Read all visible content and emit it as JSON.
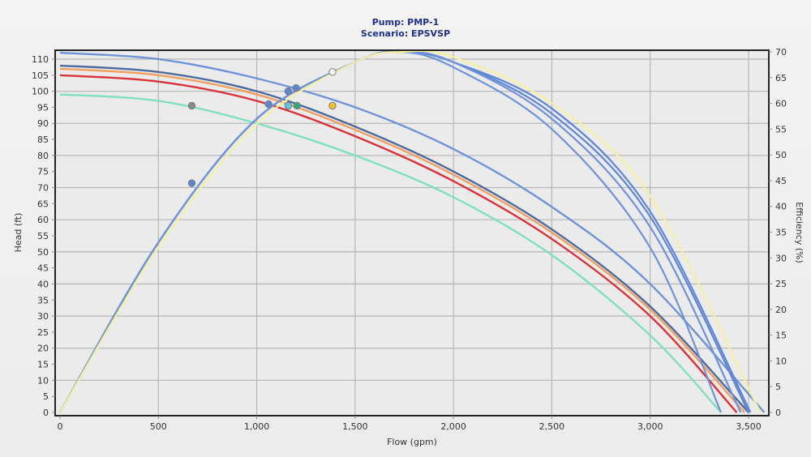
{
  "header": {
    "pump_label": "Pump: PMP-1",
    "scenario_label": "Scenario: EPSVSP"
  },
  "chart_data": {
    "type": "line",
    "title": "Pump: PMP-1",
    "subtitle": "Scenario: EPSVSP",
    "xlabel": "Flow (gpm)",
    "ylabel": "Head (ft)",
    "y2label": "Efficiency (%)",
    "xlim": [
      0,
      3600
    ],
    "ylim": [
      0,
      112
    ],
    "y2lim": [
      0,
      70
    ],
    "x_ticks": [
      0,
      500,
      1000,
      1500,
      2000,
      2500,
      3000,
      3500
    ],
    "x_tick_labels": [
      "0",
      "500",
      "1,000",
      "1,500",
      "2,000",
      "2,500",
      "3,000",
      "3,500"
    ],
    "y_ticks": [
      0,
      5,
      10,
      15,
      20,
      25,
      30,
      35,
      40,
      45,
      50,
      55,
      60,
      65,
      70,
      75,
      80,
      85,
      90,
      95,
      100,
      105,
      110
    ],
    "y2_ticks": [
      0,
      5,
      10,
      15,
      20,
      25,
      30,
      35,
      40,
      45,
      50,
      55,
      60,
      65,
      70
    ],
    "grid": true,
    "legend": "none",
    "head_curves": [
      {
        "name": "Head - light blue",
        "color": "#6f93d6",
        "shutoff": 112,
        "x": [
          0,
          500,
          1000,
          1500,
          2000,
          2500,
          3000,
          3580
        ],
        "values": [
          112,
          110,
          104,
          95,
          82,
          64,
          40,
          0
        ]
      },
      {
        "name": "Head - slate",
        "color": "#4e6a9c",
        "shutoff": 108,
        "x": [
          0,
          500,
          1000,
          1500,
          2000,
          2500,
          3000,
          3500
        ],
        "values": [
          108,
          106,
          100,
          89,
          75,
          57,
          33,
          0
        ]
      },
      {
        "name": "Head - orange",
        "color": "#f0a060",
        "shutoff": 107,
        "x": [
          0,
          500,
          1000,
          1500,
          2000,
          2500,
          3000,
          3480
        ],
        "values": [
          107,
          105,
          99,
          88,
          74,
          56,
          32,
          0
        ]
      },
      {
        "name": "Head - red",
        "color": "#d8323a",
        "shutoff": 105,
        "x": [
          0,
          500,
          1000,
          1500,
          2000,
          2500,
          3000,
          3440
        ],
        "values": [
          105,
          103,
          97,
          86,
          72,
          54,
          30,
          0
        ]
      },
      {
        "name": "Head - teal",
        "color": "#7fe0c0",
        "shutoff": 99,
        "x": [
          0,
          500,
          1000,
          1500,
          2000,
          2500,
          3000,
          3360
        ],
        "values": [
          99,
          97,
          90,
          80,
          67,
          49,
          24,
          0
        ]
      }
    ],
    "efficiency_curves": [
      {
        "name": "Efficiency - blue A",
        "color": "#5f86d2",
        "x": [
          0,
          500,
          1000,
          1500,
          1730,
          2000,
          2500,
          3000,
          3500
        ],
        "values": [
          0,
          33,
          57,
          68,
          70,
          68,
          58,
          38,
          0
        ]
      },
      {
        "name": "Efficiency - blue B",
        "color": "#5f86d2",
        "x": [
          0,
          500,
          1000,
          1500,
          1730,
          2000,
          2500,
          3000,
          3510
        ],
        "values": [
          0,
          33,
          57,
          68,
          70,
          68,
          59,
          39,
          0
        ]
      },
      {
        "name": "Efficiency - blue C",
        "color": "#6f93d6",
        "x": [
          0,
          500,
          1000,
          1500,
          1730,
          2000,
          2500,
          3000,
          3360
        ],
        "values": [
          0,
          33,
          57,
          68,
          70,
          67,
          55,
          32,
          0
        ]
      },
      {
        "name": "Efficiency - blue D",
        "color": "#6f93d6",
        "x": [
          0,
          500,
          1000,
          1500,
          1730,
          2000,
          2500,
          3000,
          3460
        ],
        "values": [
          0,
          33,
          57,
          68,
          70,
          68,
          57,
          36,
          0
        ]
      },
      {
        "name": "Efficiency - yellow",
        "color": "#f4f0a0",
        "x": [
          0,
          500,
          1000,
          1500,
          1750,
          2000,
          2500,
          3000,
          3560
        ],
        "values": [
          0,
          32,
          56,
          68,
          70,
          69,
          60,
          42,
          0
        ]
      }
    ],
    "operating_points": [
      {
        "label": "gray marker",
        "color": "#8a8a8a",
        "flow": 670,
        "head": 95.5
      },
      {
        "label": "blue eff marker 1",
        "color": "#5f86d2",
        "flow": 670,
        "efficiency": 44.5
      },
      {
        "label": "blue marker 2",
        "color": "#5f86d2",
        "flow": 1060,
        "head": 96
      },
      {
        "label": "blue marker 3",
        "color": "#5f86d2",
        "flow": 1160,
        "head": 100
      },
      {
        "label": "blue marker 4",
        "color": "#5f86d2",
        "flow": 1200,
        "head": 101
      },
      {
        "label": "cyan marker",
        "color": "#5cc8e0",
        "flow": 1160,
        "head": 95.5
      },
      {
        "label": "green marker",
        "color": "#2faa80",
        "flow": 1205,
        "head": 95.5
      },
      {
        "label": "yellow marker",
        "color": "#f5c030",
        "flow": 1385,
        "head": 95.5
      },
      {
        "label": "white marker",
        "color": "#f8f8f8",
        "flow": 1385,
        "head": 106
      }
    ]
  }
}
